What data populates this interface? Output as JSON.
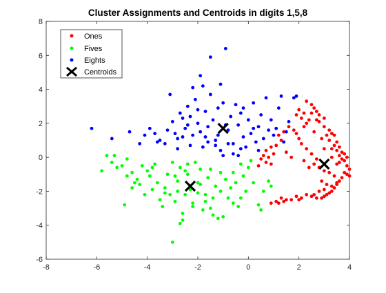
{
  "chart_data": {
    "type": "scatter",
    "title": "Cluster Assignments and Centroids in digits 1,5,8",
    "xlabel": "",
    "ylabel": "",
    "xlim": [
      -8,
      4
    ],
    "ylim": [
      -6,
      8
    ],
    "xticks": [
      -8,
      -6,
      -4,
      -2,
      0,
      2,
      4
    ],
    "yticks": [
      -6,
      -4,
      -2,
      0,
      2,
      4,
      6,
      8
    ],
    "grid": false,
    "legend_position": "top-left",
    "series": [
      {
        "name": "Ones",
        "color": "#ff0000",
        "marker": "dot",
        "points": [
          [
            2.3,
            3.3
          ],
          [
            2.5,
            3.1
          ],
          [
            2.6,
            2.9
          ],
          [
            2.7,
            2.7
          ],
          [
            2.5,
            2.6
          ],
          [
            2.8,
            2.5
          ],
          [
            3.0,
            2.3
          ],
          [
            2.7,
            2.2
          ],
          [
            2.4,
            2.2
          ],
          [
            2.2,
            2.6
          ],
          [
            2.0,
            2.8
          ],
          [
            1.9,
            2.5
          ],
          [
            2.1,
            2.3
          ],
          [
            2.3,
            2.0
          ],
          [
            2.8,
            2.1
          ],
          [
            3.0,
            1.8
          ],
          [
            3.2,
            1.6
          ],
          [
            3.3,
            1.4
          ],
          [
            3.4,
            1.3
          ],
          [
            3.1,
            1.3
          ],
          [
            2.9,
            1.1
          ],
          [
            3.2,
            1.0
          ],
          [
            3.5,
            0.9
          ],
          [
            3.4,
            0.7
          ],
          [
            3.6,
            0.6
          ],
          [
            3.3,
            0.5
          ],
          [
            3.5,
            0.4
          ],
          [
            3.7,
            0.3
          ],
          [
            3.6,
            0.1
          ],
          [
            3.8,
            0.2
          ],
          [
            3.9,
            0.0
          ],
          [
            3.7,
            -0.1
          ],
          [
            3.8,
            -0.2
          ],
          [
            3.6,
            -0.3
          ],
          [
            3.9,
            -0.5
          ],
          [
            4.0,
            -0.7
          ],
          [
            3.8,
            -0.9
          ],
          [
            3.9,
            -1.0
          ],
          [
            4.0,
            -1.1
          ],
          [
            3.7,
            -1.2
          ],
          [
            3.6,
            -1.4
          ],
          [
            3.5,
            -1.6
          ],
          [
            3.4,
            -1.8
          ],
          [
            3.3,
            -2.0
          ],
          [
            3.2,
            -2.1
          ],
          [
            3.1,
            -2.2
          ],
          [
            3.0,
            -2.3
          ],
          [
            2.9,
            -2.4
          ],
          [
            2.7,
            -2.4
          ],
          [
            2.5,
            -2.3
          ],
          [
            2.3,
            -2.2
          ],
          [
            2.1,
            -2.4
          ],
          [
            1.9,
            -2.3
          ],
          [
            1.7,
            -2.5
          ],
          [
            1.5,
            -2.5
          ],
          [
            1.3,
            -2.4
          ],
          [
            1.1,
            -2.6
          ],
          [
            0.9,
            -2.7
          ],
          [
            1.2,
            -2.7
          ],
          [
            1.4,
            -2.6
          ],
          [
            2.0,
            -2.5
          ],
          [
            2.6,
            -2.2
          ],
          [
            2.8,
            -2.0
          ],
          [
            3.0,
            -1.9
          ],
          [
            3.3,
            -1.7
          ],
          [
            3.5,
            -1.5
          ],
          [
            3.4,
            -1.1
          ],
          [
            3.2,
            -0.9
          ],
          [
            3.0,
            -0.8
          ],
          [
            2.8,
            -0.6
          ],
          [
            2.6,
            -0.4
          ],
          [
            2.7,
            -0.1
          ],
          [
            2.5,
            0.2
          ],
          [
            2.3,
            0.5
          ],
          [
            2.1,
            0.8
          ],
          [
            2.0,
            1.1
          ],
          [
            1.9,
            1.4
          ],
          [
            1.8,
            1.6
          ],
          [
            1.6,
            1.8
          ],
          [
            1.4,
            1.5
          ],
          [
            1.2,
            1.3
          ],
          [
            1.3,
            1.0
          ],
          [
            1.1,
            0.7
          ],
          [
            0.9,
            0.6
          ],
          [
            0.7,
            0.4
          ],
          [
            1.0,
            0.2
          ],
          [
            0.8,
            0.0
          ],
          [
            0.6,
            0.1
          ],
          [
            0.5,
            -0.1
          ],
          [
            0.7,
            -0.3
          ],
          [
            0.4,
            -0.5
          ],
          [
            0.9,
            -0.4
          ],
          [
            1.5,
            0.3
          ],
          [
            1.7,
            0.0
          ],
          [
            2.2,
            -0.2
          ],
          [
            2.4,
            -0.6
          ],
          [
            2.9,
            -1.4
          ],
          [
            3.1,
            -1.6
          ],
          [
            2.2,
            1.8
          ],
          [
            2.6,
            1.5
          ],
          [
            3.3,
            0.0
          ],
          [
            3.5,
            -0.4
          ],
          [
            3.0,
            0.5
          ]
        ]
      },
      {
        "name": "Fives",
        "color": "#00ff00",
        "marker": "dot",
        "points": [
          [
            -5.8,
            -0.8
          ],
          [
            -5.6,
            0.1
          ],
          [
            -5.4,
            -0.3
          ],
          [
            -5.2,
            -0.6
          ],
          [
            -5.0,
            -0.5
          ],
          [
            -4.8,
            -1.1
          ],
          [
            -4.6,
            -0.9
          ],
          [
            -4.9,
            -2.8
          ],
          [
            -4.6,
            -1.8
          ],
          [
            -4.4,
            -1.3
          ],
          [
            -4.3,
            -1.6
          ],
          [
            -4.1,
            -2.2
          ],
          [
            -4.0,
            -0.8
          ],
          [
            -3.8,
            -1.9
          ],
          [
            -3.7,
            -0.4
          ],
          [
            -3.5,
            -2.5
          ],
          [
            -3.3,
            -2.1
          ],
          [
            -3.4,
            -2.9
          ],
          [
            -3.2,
            -1.0
          ],
          [
            -3.0,
            -0.3
          ],
          [
            -2.9,
            -2.6
          ],
          [
            -2.8,
            -1.4
          ],
          [
            -2.7,
            -0.6
          ],
          [
            -2.6,
            -3.3
          ],
          [
            -2.5,
            -2.2
          ],
          [
            -2.4,
            -1.0
          ],
          [
            -2.3,
            -1.9
          ],
          [
            -2.2,
            -2.7
          ],
          [
            -2.1,
            -0.3
          ],
          [
            -2.0,
            -2.1
          ],
          [
            -1.9,
            -1.6
          ],
          [
            -1.8,
            -3.1
          ],
          [
            -1.7,
            -2.6
          ],
          [
            -1.6,
            -1.2
          ],
          [
            -1.5,
            -3.0
          ],
          [
            -1.4,
            -2.4
          ],
          [
            -1.3,
            -1.7
          ],
          [
            -1.2,
            -3.6
          ],
          [
            -1.1,
            -2.0
          ],
          [
            -1.0,
            -3.5
          ],
          [
            -0.9,
            -1.3
          ],
          [
            -0.8,
            -2.4
          ],
          [
            -0.7,
            -1.8
          ],
          [
            -0.6,
            -0.9
          ],
          [
            -0.5,
            -1.5
          ],
          [
            -0.4,
            -2.9
          ],
          [
            -0.3,
            -2.4
          ],
          [
            -0.2,
            -1.1
          ],
          [
            -0.1,
            -2.0
          ],
          [
            0.0,
            -0.6
          ],
          [
            0.2,
            -1.5
          ],
          [
            0.4,
            -2.8
          ],
          [
            0.5,
            -3.1
          ],
          [
            0.6,
            -2.0
          ],
          [
            0.8,
            -1.4
          ],
          [
            0.9,
            -1.7
          ],
          [
            -3.0,
            -5.0
          ],
          [
            -2.7,
            -3.9
          ],
          [
            -2.6,
            -3.7
          ],
          [
            -2.9,
            -1.1
          ],
          [
            -3.6,
            -1.5
          ],
          [
            -3.9,
            -1.1
          ],
          [
            -4.2,
            -0.5
          ],
          [
            -4.5,
            -1.5
          ],
          [
            -2.4,
            -0.4
          ],
          [
            -1.5,
            -0.7
          ],
          [
            -1.1,
            -0.9
          ],
          [
            -0.3,
            -0.4
          ],
          [
            0.1,
            -0.2
          ],
          [
            -2.0,
            -1.5
          ],
          [
            -1.7,
            -2.2
          ],
          [
            -3.1,
            -2.2
          ],
          [
            -2.2,
            -2.9
          ],
          [
            -1.9,
            -0.7
          ],
          [
            -2.8,
            -2.0
          ],
          [
            -3.3,
            -1.8
          ],
          [
            -4.8,
            -0.1
          ],
          [
            -5.3,
            0.1
          ],
          [
            -1.4,
            -3.4
          ],
          [
            -0.6,
            -2.7
          ],
          [
            -2.5,
            -0.8
          ],
          [
            -3.8,
            -0.6
          ]
        ]
      },
      {
        "name": "Eights",
        "color": "#0000ff",
        "marker": "dot",
        "points": [
          [
            -6.2,
            1.7
          ],
          [
            -5.4,
            1.1
          ],
          [
            -4.7,
            1.5
          ],
          [
            -4.3,
            0.8
          ],
          [
            -4.1,
            1.3
          ],
          [
            -3.9,
            1.7
          ],
          [
            -3.7,
            1.4
          ],
          [
            -3.5,
            1.0
          ],
          [
            -3.3,
            0.8
          ],
          [
            -3.2,
            1.6
          ],
          [
            -3.0,
            2.1
          ],
          [
            -2.9,
            1.4
          ],
          [
            -2.8,
            1.1
          ],
          [
            -2.7,
            2.6
          ],
          [
            -2.6,
            2.3
          ],
          [
            -2.5,
            1.7
          ],
          [
            -2.4,
            3.0
          ],
          [
            -2.3,
            2.4
          ],
          [
            -2.2,
            1.3
          ],
          [
            -2.1,
            3.4
          ],
          [
            -2.0,
            2.0
          ],
          [
            -1.9,
            4.8
          ],
          [
            -1.8,
            4.2
          ],
          [
            -1.7,
            2.7
          ],
          [
            -1.6,
            1.8
          ],
          [
            -1.5,
            3.7
          ],
          [
            -1.4,
            2.2
          ],
          [
            -1.3,
            1.0
          ],
          [
            -1.2,
            2.9
          ],
          [
            -1.1,
            4.3
          ],
          [
            -1.0,
            3.2
          ],
          [
            -0.9,
            6.4
          ],
          [
            -0.8,
            1.6
          ],
          [
            -0.7,
            2.4
          ],
          [
            -0.6,
            0.8
          ],
          [
            -0.5,
            3.1
          ],
          [
            -0.4,
            1.9
          ],
          [
            -0.3,
            2.6
          ],
          [
            -0.2,
            1.2
          ],
          [
            -0.1,
            0.6
          ],
          [
            0.0,
            2.2
          ],
          [
            0.1,
            1.4
          ],
          [
            0.2,
            3.2
          ],
          [
            0.3,
            0.9
          ],
          [
            0.4,
            1.8
          ],
          [
            0.5,
            2.5
          ],
          [
            0.6,
            1.1
          ],
          [
            0.7,
            3.5
          ],
          [
            0.8,
            1.6
          ],
          [
            0.9,
            2.2
          ],
          [
            1.0,
            1.3
          ],
          [
            1.1,
            1.7
          ],
          [
            1.2,
            2.9
          ],
          [
            1.3,
            3.6
          ],
          [
            1.4,
            0.9
          ],
          [
            1.5,
            1.5
          ],
          [
            1.6,
            2.1
          ],
          [
            1.8,
            3.5
          ],
          [
            1.9,
            3.6
          ],
          [
            -1.5,
            5.9
          ],
          [
            -2.2,
            4.1
          ],
          [
            -3.1,
            3.7
          ],
          [
            -2.6,
            1.2
          ],
          [
            -1.8,
            0.6
          ],
          [
            -1.1,
            0.4
          ],
          [
            -0.6,
            0.2
          ],
          [
            -0.4,
            0.1
          ],
          [
            -1.3,
            0.7
          ],
          [
            -1.9,
            1.5
          ],
          [
            -2.3,
            0.7
          ],
          [
            -3.6,
            0.9
          ],
          [
            -2.0,
            2.8
          ],
          [
            -1.6,
            0.9
          ],
          [
            -0.9,
            1.9
          ],
          [
            -0.3,
            0.5
          ],
          [
            -0.2,
            2.9
          ],
          [
            0.4,
            0.4
          ],
          [
            -1.2,
            1.3
          ],
          [
            -0.8,
            0.8
          ],
          [
            -2.8,
            0.5
          ],
          [
            -1.0,
            0.1
          ],
          [
            0.2,
            1.7
          ],
          [
            -1.7,
            1.2
          ],
          [
            -2.4,
            1.9
          ]
        ]
      }
    ],
    "centroids": {
      "name": "Centroids",
      "color": "#000000",
      "marker": "x",
      "points": [
        [
          -2.3,
          -1.7
        ],
        [
          -1.0,
          1.7
        ],
        [
          3.0,
          -0.4
        ]
      ]
    }
  }
}
